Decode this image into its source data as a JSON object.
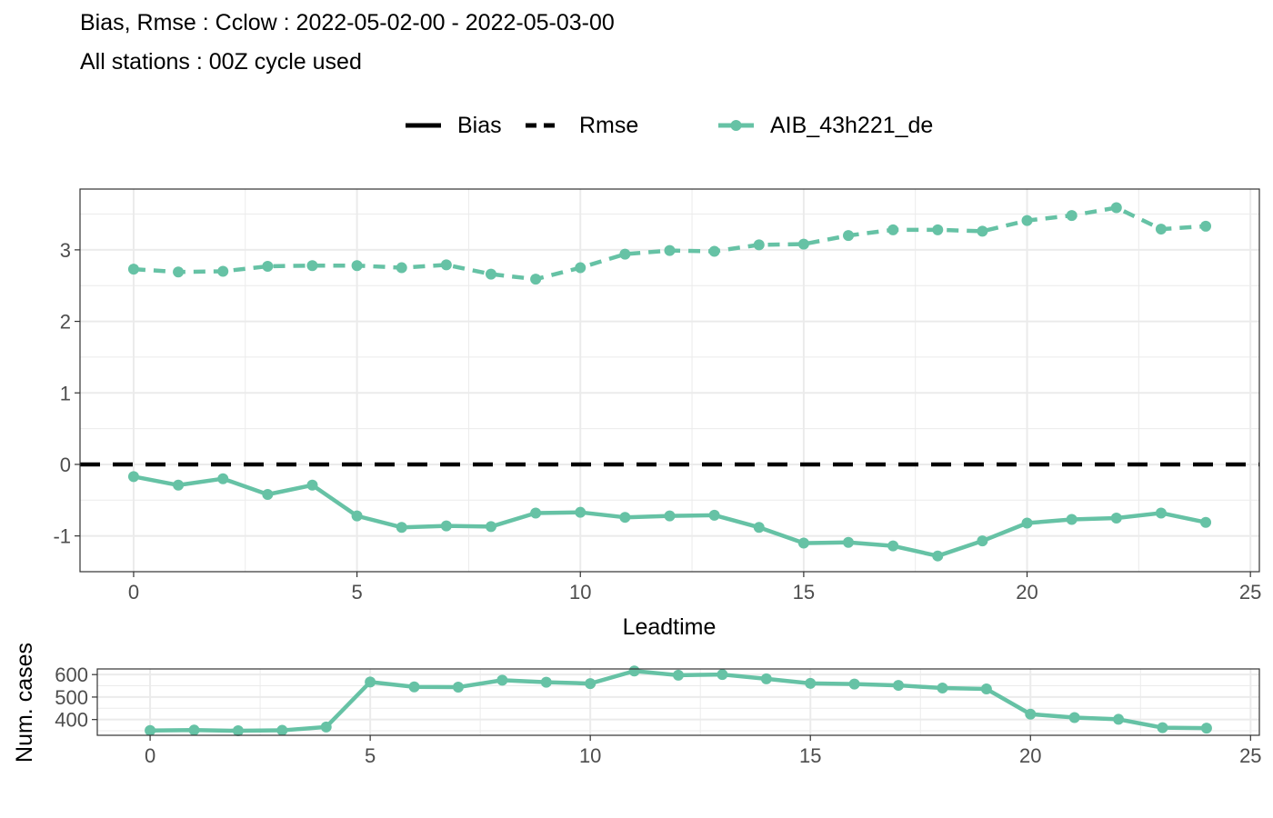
{
  "title": {
    "line1": "Bias, Rmse : Cclow : 2022-05-02-00 - 2022-05-03-00",
    "line2": "All stations : 00Z cycle used"
  },
  "legend": {
    "line_types": [
      {
        "label": "Bias",
        "dash": "solid"
      },
      {
        "label": "Rmse",
        "dash": "dashed"
      }
    ],
    "series": [
      {
        "label": "AIB_43h221_de",
        "color": "#66c2a5"
      }
    ]
  },
  "colors": {
    "series": "#66c2a5",
    "zero_line": "#000000",
    "grid": "#ebebeb",
    "panel_border": "#333333"
  },
  "chart_data": [
    {
      "type": "line",
      "panel": "main",
      "xlabel": "Leadtime",
      "ylabel": "",
      "xlim": [
        -1.2,
        25.2
      ],
      "ylim": [
        -1.5,
        3.85
      ],
      "x_ticks": [
        0,
        5,
        10,
        15,
        20,
        25
      ],
      "y_ticks": [
        -1,
        0,
        1,
        2,
        3
      ],
      "grid": true,
      "legend_position": "top",
      "reference_line": {
        "y": 0,
        "style": "dashed",
        "color": "#000000"
      },
      "x": [
        0,
        1,
        2,
        3,
        4,
        5,
        6,
        7,
        8,
        9,
        10,
        11,
        12,
        13,
        14,
        15,
        16,
        17,
        18,
        19,
        20,
        21,
        22,
        23,
        24
      ],
      "series": [
        {
          "name": "Bias",
          "color": "#66c2a5",
          "dash": "solid",
          "values": [
            -0.17,
            -0.29,
            -0.2,
            -0.42,
            -0.29,
            -0.72,
            -0.88,
            -0.86,
            -0.87,
            -0.68,
            -0.67,
            -0.74,
            -0.72,
            -0.71,
            -0.88,
            -1.1,
            -1.09,
            -1.14,
            -1.28,
            -1.07,
            -0.82,
            -0.77,
            -0.75,
            -0.68,
            -0.81
          ]
        },
        {
          "name": "Rmse",
          "color": "#66c2a5",
          "dash": "dashed",
          "values": [
            2.73,
            2.69,
            2.7,
            2.77,
            2.78,
            2.78,
            2.75,
            2.79,
            2.66,
            2.59,
            2.75,
            2.94,
            2.99,
            2.98,
            3.07,
            3.08,
            3.2,
            3.28,
            3.28,
            3.26,
            3.41,
            3.48,
            3.59,
            3.29,
            3.33
          ]
        }
      ]
    },
    {
      "type": "line",
      "panel": "cases",
      "xlabel": "",
      "ylabel": "Num. cases",
      "xlim": [
        -1.2,
        25.2
      ],
      "ylim": [
        330,
        625
      ],
      "x_ticks": [
        0,
        5,
        10,
        15,
        20,
        25
      ],
      "y_ticks": [
        400,
        500,
        600
      ],
      "grid": true,
      "x": [
        0,
        1,
        2,
        3,
        4,
        5,
        6,
        7,
        8,
        9,
        10,
        11,
        12,
        13,
        14,
        15,
        16,
        17,
        18,
        19,
        20,
        21,
        22,
        23,
        24
      ],
      "series": [
        {
          "name": "AIB_43h221_de",
          "color": "#66c2a5",
          "dash": "solid",
          "values": [
            351,
            353,
            350,
            352,
            367,
            567,
            545,
            544,
            575,
            566,
            560,
            616,
            597,
            600,
            581,
            561,
            558,
            552,
            540,
            536,
            424,
            409,
            401,
            364,
            362
          ]
        }
      ]
    }
  ]
}
